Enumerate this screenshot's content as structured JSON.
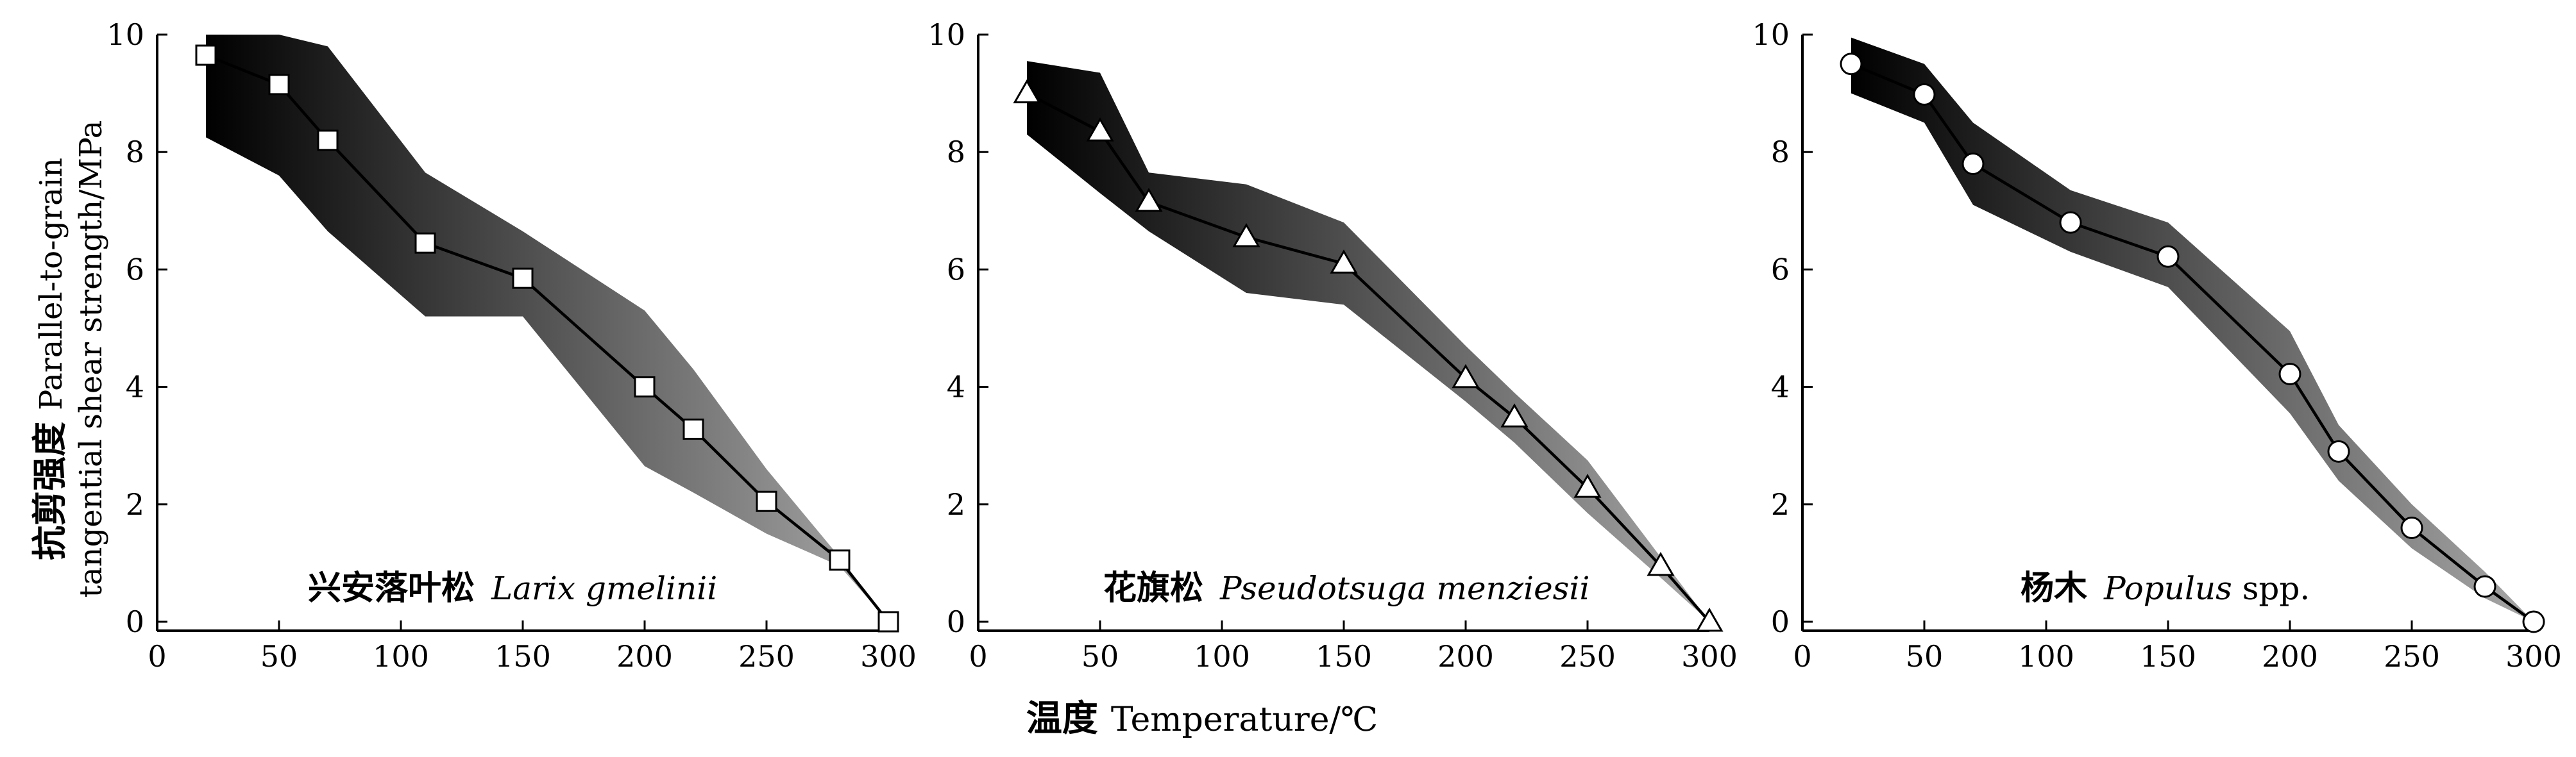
{
  "chart_data": [
    {
      "type": "line",
      "series": [
        {
          "marker": "square",
          "x": [
            20,
            50,
            70,
            110,
            150,
            200,
            220,
            250,
            280,
            300
          ],
          "y": [
            9.65,
            9.15,
            8.2,
            6.45,
            5.85,
            4.0,
            3.28,
            2.05,
            1.05,
            0.0
          ]
        }
      ],
      "band": {
        "upper": [
          10.0,
          10.0,
          9.8,
          7.65,
          6.65,
          5.3,
          4.3,
          2.6,
          1.1,
          0.0
        ],
        "lower": [
          8.25,
          7.6,
          6.65,
          5.2,
          5.2,
          2.65,
          2.2,
          1.5,
          0.95,
          0.0
        ]
      },
      "species_cn": "兴安落叶松",
      "species_latin": "Larix gmelinii",
      "xlim": [
        0,
        300
      ],
      "ylim": [
        0,
        10
      ],
      "xticks": [
        "0",
        "50",
        "100",
        "150",
        "200",
        "250",
        "300"
      ],
      "yticks": [
        "0",
        "2",
        "4",
        "6",
        "8",
        "10"
      ]
    },
    {
      "type": "line",
      "series": [
        {
          "marker": "triangle",
          "x": [
            20,
            50,
            70,
            110,
            150,
            200,
            220,
            250,
            280,
            300
          ],
          "y": [
            9.0,
            8.35,
            7.15,
            6.55,
            6.1,
            4.15,
            3.48,
            2.28,
            0.95,
            0.0
          ]
        }
      ],
      "band": {
        "upper": [
          9.55,
          9.35,
          7.65,
          7.45,
          6.8,
          4.7,
          3.9,
          2.75,
          1.1,
          0.0
        ],
        "lower": [
          8.3,
          7.3,
          6.65,
          5.6,
          5.4,
          3.75,
          3.05,
          1.85,
          0.75,
          0.0
        ]
      },
      "species_cn": "花旗松",
      "species_latin": "Pseudotsuga menziesii",
      "xlim": [
        0,
        300
      ],
      "ylim": [
        0,
        10
      ],
      "xticks": [
        "0",
        "50",
        "100",
        "150",
        "200",
        "250",
        "300"
      ],
      "yticks": [
        "0",
        "2",
        "4",
        "6",
        "8",
        "10"
      ]
    },
    {
      "type": "line",
      "series": [
        {
          "marker": "circle",
          "x": [
            20,
            50,
            70,
            110,
            150,
            200,
            220,
            250,
            280,
            300
          ],
          "y": [
            9.5,
            8.98,
            7.8,
            6.8,
            6.22,
            4.22,
            2.9,
            1.6,
            0.6,
            0.0
          ]
        }
      ],
      "band": {
        "upper": [
          9.95,
          9.5,
          8.5,
          7.35,
          6.8,
          4.95,
          3.35,
          2.0,
          0.85,
          0.0
        ],
        "lower": [
          9.0,
          8.5,
          7.1,
          6.3,
          5.7,
          3.55,
          2.4,
          1.25,
          0.4,
          0.0
        ]
      },
      "species_cn": "杨木",
      "species_latin": "Populus",
      "species_suffix": " spp.",
      "xlim": [
        0,
        300
      ],
      "ylim": [
        0,
        10
      ],
      "xticks": [
        "0",
        "50",
        "100",
        "150",
        "200",
        "250",
        "300"
      ],
      "yticks": [
        "0",
        "2",
        "4",
        "6",
        "8",
        "10"
      ]
    }
  ],
  "ylabel_cn": "抗剪强度",
  "ylabel_en_line1": "Parallel-to-grain",
  "ylabel_en_line2": "tangential shear strength/MPa",
  "xlabel_cn": "温度",
  "xlabel_en": "Temperature/℃",
  "colors": {
    "band_dark": "#000000",
    "band_light": "#a8a8a8",
    "line": "#000000",
    "marker_fill": "#ffffff"
  }
}
